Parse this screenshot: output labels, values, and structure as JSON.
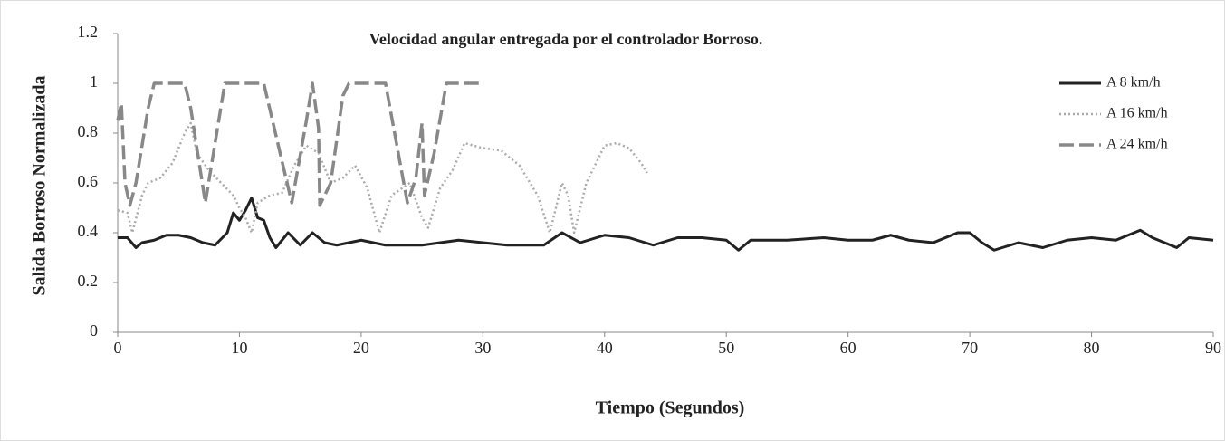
{
  "chart_data": {
    "type": "line",
    "title": "Velocidad angular entregada por el controlador Borroso.",
    "xlabel": "Tiempo (Segundos)",
    "ylabel": "Salida Borroso Normalizada",
    "xlim": [
      0,
      90
    ],
    "xticks": [
      0,
      10,
      20,
      30,
      40,
      50,
      60,
      70,
      80,
      90
    ],
    "ylim": [
      0,
      1.2
    ],
    "yticks": [
      0,
      0.2,
      0.4,
      0.6,
      0.8,
      1,
      1.2
    ],
    "legend": "upper right",
    "series": [
      {
        "name": "A 8 km/h",
        "color": "#222222",
        "line_style": "solid",
        "x": [
          0,
          0.8,
          1.5,
          2,
          3,
          4,
          5,
          6,
          7,
          8,
          9,
          9.5,
          10,
          10.5,
          11,
          11.5,
          12,
          12.5,
          13,
          14,
          15,
          16,
          17,
          18,
          20,
          22,
          25,
          28,
          30,
          32,
          35,
          36.5,
          38,
          40,
          42,
          44,
          46,
          48,
          50,
          51,
          52,
          55,
          58,
          60,
          62,
          63.5,
          65,
          67,
          69,
          70,
          71,
          72,
          74,
          76,
          78,
          80,
          82,
          84,
          85,
          87,
          88,
          90
        ],
        "values": [
          0.38,
          0.38,
          0.34,
          0.36,
          0.37,
          0.39,
          0.39,
          0.38,
          0.36,
          0.35,
          0.4,
          0.48,
          0.45,
          0.49,
          0.54,
          0.46,
          0.45,
          0.38,
          0.34,
          0.4,
          0.35,
          0.4,
          0.36,
          0.35,
          0.37,
          0.35,
          0.35,
          0.37,
          0.36,
          0.35,
          0.35,
          0.4,
          0.36,
          0.39,
          0.38,
          0.35,
          0.38,
          0.38,
          0.37,
          0.33,
          0.37,
          0.37,
          0.38,
          0.37,
          0.37,
          0.39,
          0.37,
          0.36,
          0.4,
          0.4,
          0.36,
          0.33,
          0.36,
          0.34,
          0.37,
          0.38,
          0.37,
          0.41,
          0.38,
          0.34,
          0.38,
          0.37
        ]
      },
      {
        "name": "A 16 km/h",
        "color": "#aaaaaa",
        "line_style": "dotted",
        "x": [
          0,
          0.8,
          1.2,
          2,
          2.5,
          3.5,
          4.5,
          5.5,
          6,
          6.5,
          7.5,
          8.5,
          9.5,
          10,
          10.5,
          11,
          11.5,
          12.5,
          13.5,
          14.5,
          15.5,
          16.5,
          17.5,
          18.5,
          19.5,
          20.5,
          21.5,
          22.5,
          24,
          25,
          25.5,
          26.5,
          27.5,
          28.5,
          30,
          31.5,
          33,
          34.5,
          35.5,
          36.5,
          37,
          37.5,
          38.5,
          40,
          41,
          42,
          43,
          43.5
        ],
        "values": [
          0.49,
          0.48,
          0.4,
          0.55,
          0.6,
          0.62,
          0.68,
          0.8,
          0.84,
          0.72,
          0.65,
          0.6,
          0.55,
          0.5,
          0.46,
          0.4,
          0.52,
          0.55,
          0.56,
          0.67,
          0.75,
          0.72,
          0.6,
          0.62,
          0.67,
          0.58,
          0.4,
          0.55,
          0.6,
          0.46,
          0.42,
          0.58,
          0.65,
          0.76,
          0.74,
          0.73,
          0.67,
          0.55,
          0.4,
          0.6,
          0.55,
          0.4,
          0.6,
          0.75,
          0.76,
          0.74,
          0.68,
          0.64
        ]
      },
      {
        "name": "A 24 km/h",
        "color": "#888888",
        "line_style": "dashed",
        "x": [
          0,
          0.3,
          0.6,
          1,
          1.5,
          2.5,
          3,
          5.5,
          6,
          7.2,
          8.2,
          8.8,
          12,
          14.3,
          15.5,
          16,
          16.5,
          16.6,
          17.5,
          18.5,
          19,
          22,
          23.8,
          24.5,
          25,
          25.2,
          26,
          27,
          30
        ],
        "values": [
          0.85,
          0.92,
          0.6,
          0.51,
          0.6,
          0.9,
          1,
          1,
          0.9,
          0.52,
          0.82,
          1,
          1,
          0.52,
          0.85,
          1,
          0.82,
          0.51,
          0.6,
          0.95,
          1,
          1,
          0.52,
          0.62,
          0.84,
          0.55,
          0.72,
          1,
          1
        ]
      }
    ]
  }
}
